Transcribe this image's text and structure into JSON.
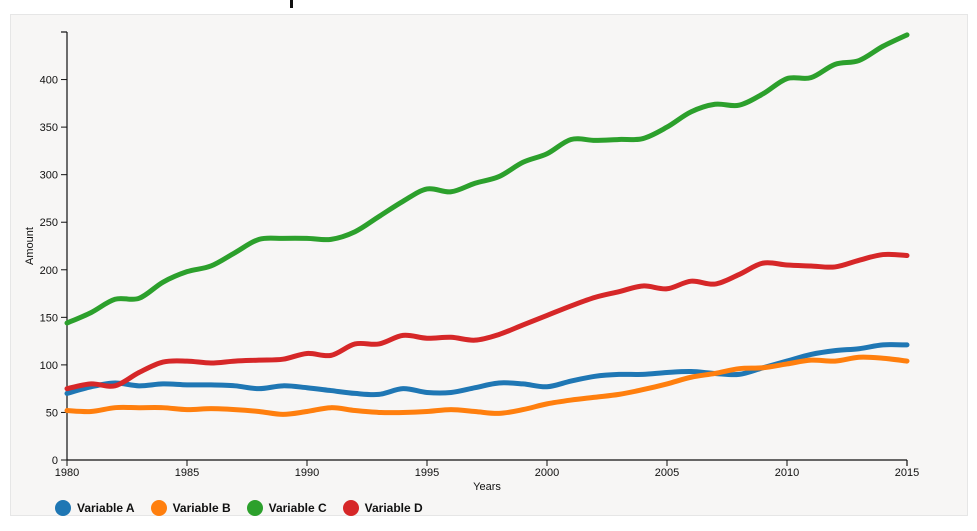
{
  "chart_data": {
    "type": "line",
    "title": "",
    "xlabel": "Years",
    "ylabel": "Amount",
    "xlim": [
      1980,
      2015
    ],
    "ylim": [
      0,
      450
    ],
    "x_ticks": [
      1980,
      1985,
      1990,
      1995,
      2000,
      2005,
      2010,
      2015
    ],
    "y_ticks": [
      0,
      50,
      100,
      150,
      200,
      250,
      300,
      350,
      400
    ],
    "grid": false,
    "legend_position": "bottom-left",
    "x": [
      1980,
      1981,
      1982,
      1983,
      1984,
      1985,
      1986,
      1987,
      1988,
      1989,
      1990,
      1991,
      1992,
      1993,
      1994,
      1995,
      1996,
      1997,
      1998,
      1999,
      2000,
      2001,
      2002,
      2003,
      2004,
      2005,
      2006,
      2007,
      2008,
      2009,
      2010,
      2011,
      2012,
      2013,
      2014,
      2015
    ],
    "series": [
      {
        "name": "Variable A",
        "color": "#1f77b4",
        "values": [
          70,
          77,
          81,
          78,
          80,
          79,
          79,
          78,
          75,
          78,
          76,
          73,
          70,
          69,
          75,
          71,
          71,
          76,
          81,
          80,
          77,
          83,
          88,
          90,
          90,
          92,
          93,
          91,
          90,
          97,
          104,
          111,
          115,
          117,
          121,
          121
        ]
      },
      {
        "name": "Variable B",
        "color": "#ff7f0e",
        "values": [
          52,
          51,
          55,
          55,
          55,
          53,
          54,
          53,
          51,
          48,
          51,
          55,
          52,
          50,
          50,
          51,
          53,
          51,
          49,
          53,
          59,
          63,
          66,
          69,
          74,
          80,
          87,
          91,
          96,
          97,
          101,
          105,
          104,
          108,
          107,
          104
        ]
      },
      {
        "name": "Variable C",
        "color": "#2ca02c",
        "values": [
          144,
          155,
          169,
          170,
          187,
          198,
          204,
          218,
          232,
          233,
          233,
          232,
          240,
          256,
          272,
          285,
          282,
          291,
          298,
          313,
          322,
          337,
          336,
          337,
          338,
          350,
          366,
          374,
          373,
          385,
          401,
          402,
          416,
          420,
          435,
          447
        ]
      },
      {
        "name": "Variable D",
        "color": "#d62728",
        "values": [
          75,
          80,
          78,
          92,
          103,
          104,
          102,
          104,
          105,
          106,
          112,
          110,
          122,
          122,
          131,
          128,
          129,
          126,
          132,
          142,
          152,
          162,
          171,
          177,
          183,
          180,
          188,
          185,
          195,
          207,
          205,
          204,
          203,
          210,
          216,
          215
        ]
      }
    ]
  }
}
